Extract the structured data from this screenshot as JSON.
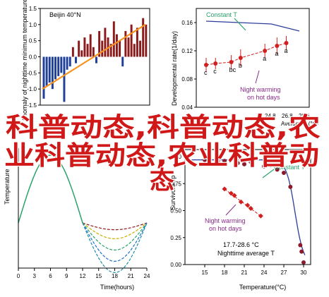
{
  "overlay": {
    "line1": "科普动态,科普动态,农",
    "line2": "业科普动态,农业科普动",
    "line3": "态"
  },
  "chart_data": [
    {
      "type": "bar",
      "panel": "top-left",
      "title": "Beijin 40°N",
      "ylabel": "Anomaly of nighttime minimum temperature on hot days",
      "ylim": [
        -1.5,
        1.5
      ],
      "y_ticks": [
        "1.5",
        "1.0",
        "0.5",
        "0.0",
        "-0.5",
        "-1.0",
        "-1.5"
      ],
      "bar_colors": {
        "positive": "#8b1a1a",
        "negative": "#1f3f99"
      },
      "trend_color": "#f7931e",
      "values": [
        -1.3,
        -0.9,
        -0.8,
        -1.0,
        -0.7,
        -0.6,
        -0.5,
        -1.4,
        -0.4,
        -0.3,
        0.3,
        -0.2,
        0.5,
        0.2,
        0.6,
        0.4,
        0.7,
        0.3,
        -0.2,
        0.8,
        0.5,
        0.9,
        0.6,
        0.4,
        1.1,
        0.7,
        0.5,
        -0.3,
        0.8,
        0.6,
        1.0,
        0.4,
        0.9,
        0.5,
        1.2,
        1.0
      ],
      "trend": {
        "start": -1.0,
        "end": 1.0
      }
    },
    {
      "type": "scatter",
      "panel": "top-right",
      "ylabel": "Developmental rate(1/day)",
      "ylim": [
        0.04,
        0.18
      ],
      "y_ticks": [
        "0.04",
        "0.08",
        "0.12",
        "0.16"
      ],
      "constant_label": "Constant T",
      "constant_color": "#2c3e9c",
      "constant_points": [
        {
          "x": 0.0,
          "y": 0.162
        },
        {
          "x": 0.7,
          "y": 0.158
        },
        {
          "x": 1.0,
          "y": 0.148
        }
      ],
      "warming_label": "Night warming on hot days",
      "warming_color": "#d11f1f",
      "warming_label_color": "#8b2a8b",
      "warming_points": [
        {
          "x": 0.0,
          "y": 0.1,
          "err": 0.01,
          "letter": "c"
        },
        {
          "x": 0.1,
          "y": 0.102,
          "err": 0.008,
          "letter": "c"
        },
        {
          "x": 0.27,
          "y": 0.104,
          "err": 0.01,
          "letter": "bc"
        },
        {
          "x": 0.37,
          "y": 0.11,
          "err": 0.012,
          "letter": "b"
        },
        {
          "x": 0.63,
          "y": 0.12,
          "err": 0.01,
          "letter": "a"
        },
        {
          "x": 0.76,
          "y": 0.127,
          "err": 0.012,
          "letter": "a"
        },
        {
          "x": 0.86,
          "y": 0.131,
          "err": 0.01,
          "letter": "a"
        }
      ],
      "x_tick_partial": [
        "24.8",
        "26.8",
        "28.6"
      ],
      "xlabel_partial": "Average T (°C)"
    },
    {
      "type": "line",
      "panel": "bottom-left",
      "xlabel": "Time(hours)",
      "ylabel": "Temperature",
      "xlim": [
        0,
        24
      ],
      "x_ticks": [
        "0",
        "3",
        "6",
        "9",
        "12",
        "15",
        "18",
        "21",
        "24"
      ],
      "daily_curve": {
        "color": "#2aa36b",
        "min_level": 0.4,
        "peak_level": 1.0,
        "peak_hour": 6
      },
      "night_curves": [
        {
          "color": "#8b1a1a",
          "dash": "4,2",
          "depth": 0.06
        },
        {
          "color": "#c8b000",
          "dash": "4,2",
          "depth": 0.14
        },
        {
          "color": "#2aa36b",
          "dash": "4,2",
          "depth": 0.24
        },
        {
          "color": "#1f6fd1",
          "dash": "4,2",
          "depth": 0.34
        },
        {
          "color": "#1a8fa8",
          "dash": "4,2",
          "depth": 0.44
        }
      ]
    },
    {
      "type": "scatter",
      "panel": "bottom-right",
      "xlabel": "Temperature(°C)",
      "ylabel": "Survivorship",
      "xlim": [
        12,
        30
      ],
      "ylim": [
        0,
        1
      ],
      "x_ticks": [
        "15",
        "18",
        "21",
        "24",
        "27",
        "30"
      ],
      "y_ticks": [
        "0.00",
        "0.25",
        "0.50",
        "0.75",
        "1.00"
      ],
      "constant_label": "Constant T",
      "constant_color": "#2c3e9c",
      "constant_points": [
        {
          "x": 15,
          "y": 0.97
        },
        {
          "x": 17,
          "y": 0.95
        },
        {
          "x": 18,
          "y": 0.96
        },
        {
          "x": 20,
          "y": 0.94
        },
        {
          "x": 21,
          "y": 0.93
        },
        {
          "x": 22,
          "y": 0.95
        },
        {
          "x": 24,
          "y": 0.91
        },
        {
          "x": 25,
          "y": 0.92
        },
        {
          "x": 26,
          "y": 0.88
        },
        {
          "x": 27,
          "y": 0.85
        },
        {
          "x": 28,
          "y": 0.72
        },
        {
          "x": 29.5,
          "y": 0.18
        },
        {
          "x": 29.7,
          "y": 0.12
        },
        {
          "x": 30,
          "y": 0.02
        }
      ],
      "warming_label": "Night warming on hot days",
      "warming_color": "#d11f1f",
      "warming_label_color": "#8b2a8b",
      "warming_points": [
        {
          "x": 18.0,
          "y": 0.7
        },
        {
          "x": 19.0,
          "y": 0.66
        },
        {
          "x": 19.5,
          "y": 0.64
        },
        {
          "x": 20.5,
          "y": 0.58
        },
        {
          "x": 21.5,
          "y": 0.55
        },
        {
          "x": 22.0,
          "y": 0.52
        },
        {
          "x": 23.5,
          "y": 0.45
        }
      ],
      "footer_top": "17.7-28.6 °C",
      "footer_bottom": "Nighttime average T"
    }
  ]
}
